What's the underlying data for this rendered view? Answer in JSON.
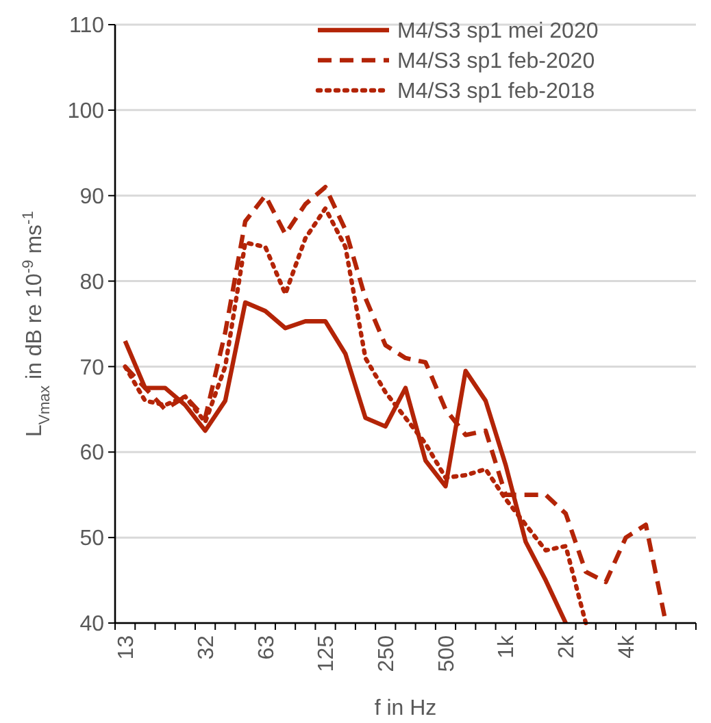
{
  "chart_data": {
    "type": "line",
    "xlabel": "f in Hz",
    "ylabel": "L$_{Vmax}$ in dB re 10$^{-9}$ ms$^{-1}$",
    "categories": [
      "13",
      null,
      null,
      null,
      "32",
      null,
      null,
      "63",
      null,
      null,
      "125",
      null,
      null,
      "250",
      null,
      null,
      "500",
      null,
      null,
      "1k",
      null,
      null,
      "2k",
      null,
      null,
      "4k",
      null,
      null,
      null
    ],
    "ylim": [
      40,
      110
    ],
    "yticks": [
      40,
      50,
      60,
      70,
      80,
      90,
      100,
      110
    ],
    "grid": "y",
    "legend": "top right",
    "series": [
      {
        "name": "M4/S3 sp1 mei 2020",
        "color": "#b32407",
        "line_style": "solid",
        "values": [
          73,
          67.5,
          67.5,
          65.5,
          62.5,
          66,
          77.5,
          76.5,
          74.5,
          75.3,
          75.3,
          71.5,
          64,
          63,
          67.5,
          59,
          56,
          69.5,
          66,
          58.5,
          49.5,
          45,
          40,
          null,
          null,
          null,
          null,
          null,
          null
        ]
      },
      {
        "name": "M4/S3 sp1 feb-2020",
        "color": "#b32407",
        "line_style": "dashed",
        "values": [
          70,
          67.5,
          65,
          66.5,
          64,
          74,
          87,
          90,
          85.5,
          89,
          91,
          86,
          78,
          72.5,
          71,
          70.5,
          65,
          62,
          62.5,
          55,
          55,
          55,
          52.8,
          46,
          44.8,
          50,
          51.5,
          40,
          null
        ]
      },
      {
        "name": "M4/S3 sp1 feb-2018",
        "color": "#b32407",
        "line_style": "dotted",
        "values": [
          70,
          66,
          65.5,
          66.5,
          63.5,
          70,
          84.5,
          84,
          78.5,
          85,
          88.5,
          84,
          71,
          67,
          64,
          61,
          57,
          57.3,
          58,
          54.5,
          51.5,
          48.5,
          49,
          40,
          null,
          null,
          null,
          null,
          null
        ]
      }
    ]
  }
}
